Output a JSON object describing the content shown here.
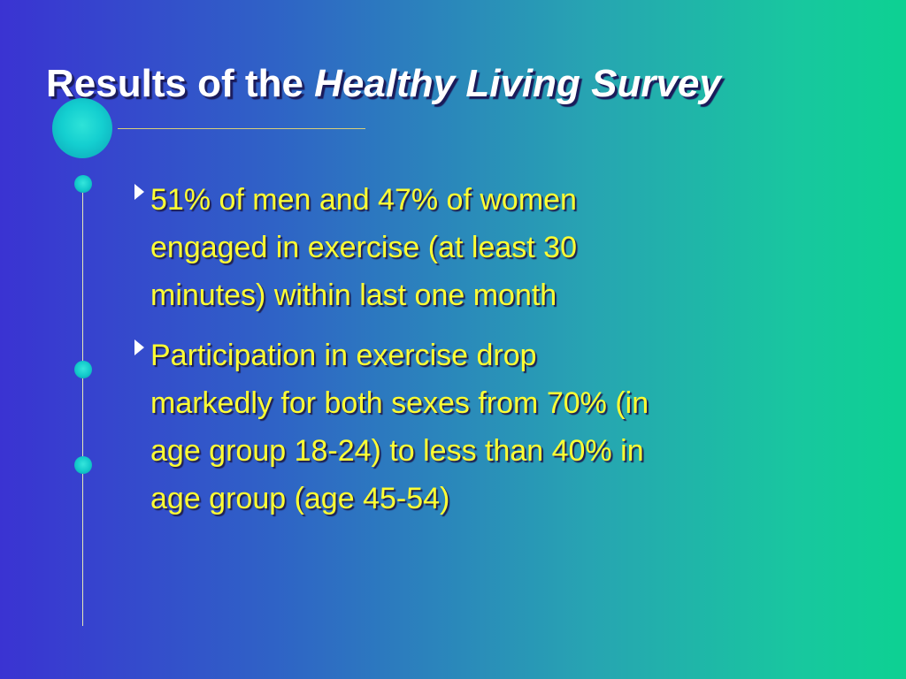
{
  "slide": {
    "title": {
      "prefix": "Results of the",
      "italic": "Healthy Living Survey"
    },
    "bullets": [
      {
        "lines": [
          "51% of men and 47% of women",
          "engaged in exercise (at least 30",
          "minutes) within last one month"
        ]
      },
      {
        "lines": [
          "Participation in exercise drop",
          "markedly for both sexes from 70% (in",
          "age group 18-24) to less than 40% in",
          "age group (age 45-54)"
        ]
      }
    ],
    "colors": {
      "title_text": "#ffffff",
      "bullet_text": "#ffff33",
      "background_left": "#3a33d2",
      "background_right": "#0dd192",
      "orb": "#14cfd0"
    },
    "icons": [
      "orb-icon",
      "bullet-arrow-icon"
    ]
  }
}
